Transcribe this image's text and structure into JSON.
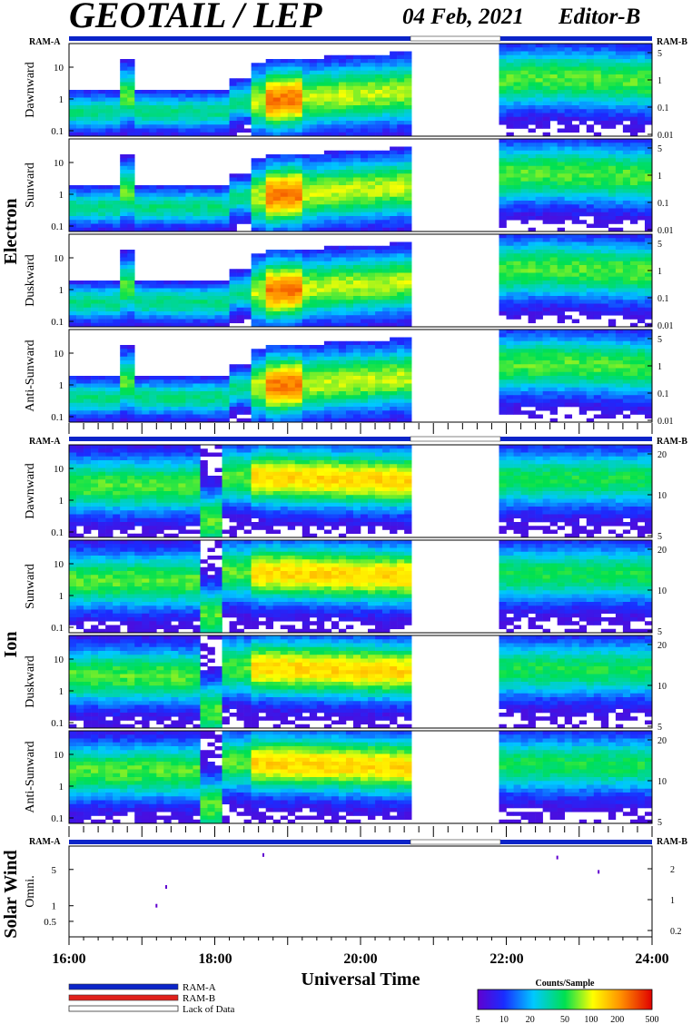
{
  "header": {
    "title": "GEOTAIL / LEP",
    "date": "04 Feb, 2021",
    "editor": "Editor-B"
  },
  "groups": {
    "electron": "Electron",
    "ion": "Ion",
    "solar_wind": "Solar Wind"
  },
  "ram_labels": {
    "left": "RAM-A",
    "right": "RAM-B"
  },
  "x_axis": {
    "title": "Universal Time",
    "ticks": [
      "16:00",
      "18:00",
      "20:00",
      "22:00",
      "24:00"
    ]
  },
  "legend": {
    "items": [
      {
        "label": "RAM-A",
        "color": "#0b24c8"
      },
      {
        "label": "RAM-B",
        "color": "#e0201a"
      },
      {
        "label": "Lack of Data",
        "color": "#ffffff"
      }
    ]
  },
  "colorbar": {
    "title": "Counts/Sample",
    "ticks": [
      "5",
      "10",
      "20",
      "50",
      "100",
      "200",
      "500"
    ]
  },
  "chart_data": [
    {
      "type": "heatmap",
      "species": "Electron",
      "direction": "Dawnward",
      "x_range": [
        "16:00",
        "24:00"
      ],
      "y_left_ticks": [
        "10",
        "1",
        "0.1"
      ],
      "y_right_ticks": [
        "5",
        "1",
        "0.1",
        "0.01"
      ],
      "data_gap": [
        "20:42",
        "21:54"
      ],
      "color_scale": "Counts/Sample 5-500 (log)"
    },
    {
      "type": "heatmap",
      "species": "Electron",
      "direction": "Sunward",
      "x_range": [
        "16:00",
        "24:00"
      ],
      "y_left_ticks": [
        "10",
        "1",
        "0.1"
      ],
      "y_right_ticks": [
        "5",
        "1",
        "0.1",
        "0.01"
      ],
      "data_gap": [
        "20:42",
        "21:54"
      ],
      "color_scale": "Counts/Sample 5-500 (log)"
    },
    {
      "type": "heatmap",
      "species": "Electron",
      "direction": "Duskward",
      "x_range": [
        "16:00",
        "24:00"
      ],
      "y_left_ticks": [
        "10",
        "1",
        "0.1"
      ],
      "y_right_ticks": [
        "5",
        "1",
        "0.1",
        "0.01"
      ],
      "data_gap": [
        "20:42",
        "21:54"
      ],
      "color_scale": "Counts/Sample 5-500 (log)"
    },
    {
      "type": "heatmap",
      "species": "Electron",
      "direction": "Anti-Sunward",
      "x_range": [
        "16:00",
        "24:00"
      ],
      "y_left_ticks": [
        "10",
        "1",
        "0.1"
      ],
      "y_right_ticks": [
        "5",
        "1",
        "0.1",
        "0.01"
      ],
      "data_gap": [
        "20:42",
        "21:54"
      ],
      "color_scale": "Counts/Sample 5-500 (log)"
    },
    {
      "type": "heatmap",
      "species": "Ion",
      "direction": "Dawnward",
      "x_range": [
        "16:00",
        "24:00"
      ],
      "y_left_ticks": [
        "10",
        "1",
        "0.1"
      ],
      "y_right_ticks": [
        "20",
        "10",
        "5"
      ],
      "data_gap": [
        "20:42",
        "21:54"
      ],
      "color_scale": "Counts/Sample 5-500 (log)"
    },
    {
      "type": "heatmap",
      "species": "Ion",
      "direction": "Sunward",
      "x_range": [
        "16:00",
        "24:00"
      ],
      "y_left_ticks": [
        "10",
        "1",
        "0.1"
      ],
      "y_right_ticks": [
        "20",
        "10",
        "5"
      ],
      "data_gap": [
        "20:42",
        "21:54"
      ],
      "color_scale": "Counts/Sample 5-500 (log)"
    },
    {
      "type": "heatmap",
      "species": "Ion",
      "direction": "Duskward",
      "x_range": [
        "16:00",
        "24:00"
      ],
      "y_left_ticks": [
        "10",
        "1",
        "0.1"
      ],
      "y_right_ticks": [
        "20",
        "10",
        "5"
      ],
      "data_gap": [
        "20:42",
        "21:54"
      ],
      "color_scale": "Counts/Sample 5-500 (log)"
    },
    {
      "type": "heatmap",
      "species": "Ion",
      "direction": "Anti-Sunward",
      "x_range": [
        "16:00",
        "24:00"
      ],
      "y_left_ticks": [
        "10",
        "1",
        "0.1"
      ],
      "y_right_ticks": [
        "20",
        "10",
        "5"
      ],
      "data_gap": [
        "20:42",
        "21:54"
      ],
      "color_scale": "Counts/Sample 5-500 (log)"
    },
    {
      "type": "scatter",
      "species": "Solar Wind",
      "direction": "Omni.",
      "x_range": [
        "16:00",
        "24:00"
      ],
      "y_left_ticks": [
        "5",
        "1",
        "0.5"
      ],
      "y_right_ticks": [
        "2",
        "1",
        "0.2"
      ],
      "points": [
        {
          "x": "17:12",
          "y": 1.0
        },
        {
          "x": "17:20",
          "y": 2.3
        },
        {
          "x": "18:40",
          "y": 9.5
        },
        {
          "x": "22:42",
          "y": 8.5
        },
        {
          "x": "23:16",
          "y": 4.5
        }
      ]
    }
  ]
}
